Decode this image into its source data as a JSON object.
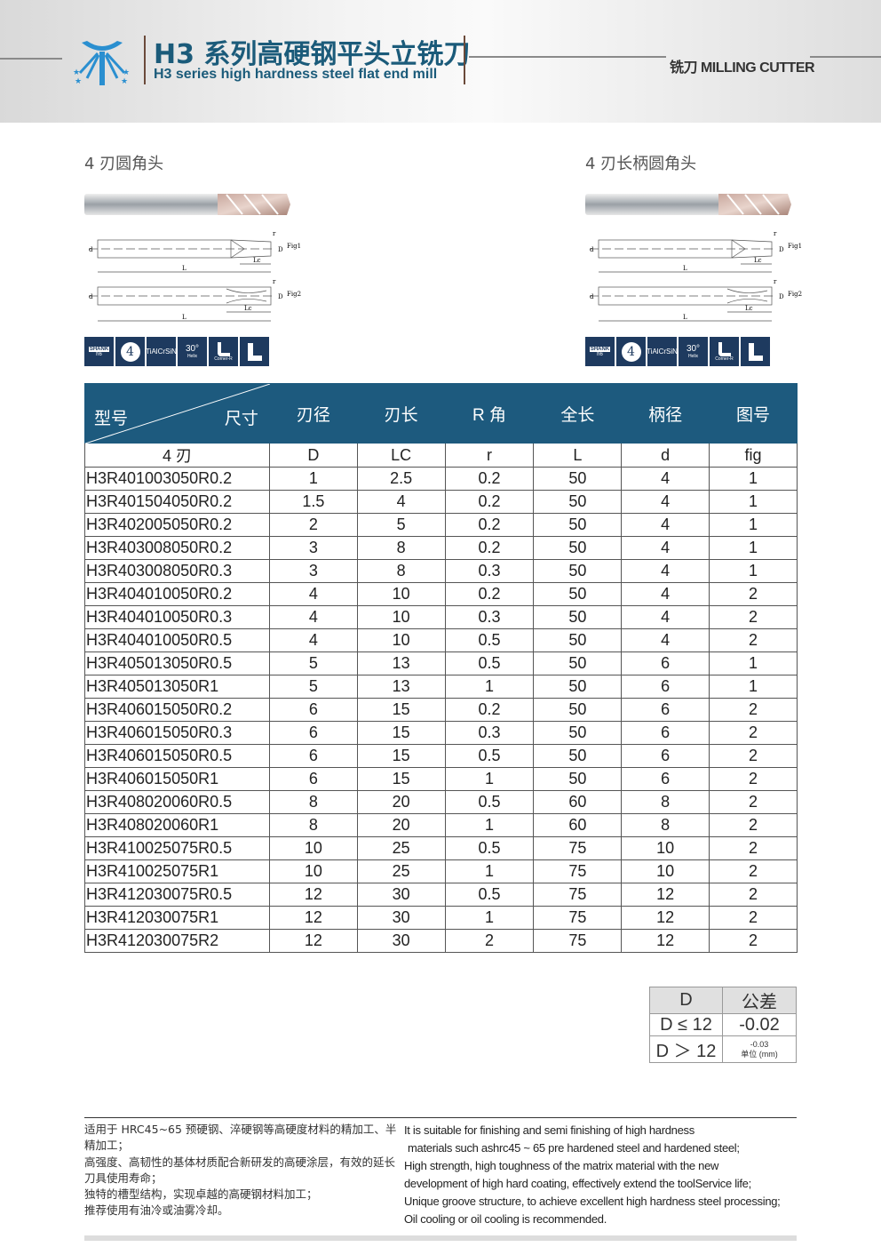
{
  "header": {
    "title_cn": "H3 系列高硬钢平头立铣刀",
    "title_en": "H3 series high hardness steel flat end mill",
    "section": "铣刀 MILLING CUTTER"
  },
  "products": [
    {
      "label": "4 刃圆角头",
      "fig1": "Fig1",
      "fig2": "Fig2"
    },
    {
      "label": "4 刃长柄圆角头",
      "fig1": "Fig1",
      "fig2": "Fig2"
    }
  ],
  "drawing_labels": {
    "d": "d",
    "D": "D",
    "L": "L",
    "Lc": "Lc",
    "r": "r"
  },
  "badges": {
    "shank": "SHANK",
    "shank_tol": "h6",
    "flutes": "4",
    "coating": "TiAlCrSiN",
    "helix_angle": "30°",
    "helix": "Helix",
    "corner": "Corner-R"
  },
  "brand_color": "#1d5a7e",
  "table": {
    "header": {
      "model": "型号",
      "size": "尺寸",
      "cols": [
        "刃径",
        "刃长",
        "R 角",
        "全长",
        "柄径",
        "图号"
      ]
    },
    "subheader": [
      "4 刃",
      "D",
      "LC",
      "r",
      "L",
      "d",
      "fig"
    ],
    "rows": [
      [
        "H3R401003050R0.2",
        "1",
        "2.5",
        "0.2",
        "50",
        "4",
        "1"
      ],
      [
        "H3R401504050R0.2",
        "1.5",
        "4",
        "0.2",
        "50",
        "4",
        "1"
      ],
      [
        "H3R402005050R0.2",
        "2",
        "5",
        "0.2",
        "50",
        "4",
        "1"
      ],
      [
        "H3R403008050R0.2",
        "3",
        "8",
        "0.2",
        "50",
        "4",
        "1"
      ],
      [
        "H3R403008050R0.3",
        "3",
        "8",
        "0.3",
        "50",
        "4",
        "1"
      ],
      [
        "H3R404010050R0.2",
        "4",
        "10",
        "0.2",
        "50",
        "4",
        "2"
      ],
      [
        "H3R404010050R0.3",
        "4",
        "10",
        "0.3",
        "50",
        "4",
        "2"
      ],
      [
        "H3R404010050R0.5",
        "4",
        "10",
        "0.5",
        "50",
        "4",
        "2"
      ],
      [
        "H3R405013050R0.5",
        "5",
        "13",
        "0.5",
        "50",
        "6",
        "1"
      ],
      [
        "H3R405013050R1",
        "5",
        "13",
        "1",
        "50",
        "6",
        "1"
      ],
      [
        "H3R406015050R0.2",
        "6",
        "15",
        "0.2",
        "50",
        "6",
        "2"
      ],
      [
        "H3R406015050R0.3",
        "6",
        "15",
        "0.3",
        "50",
        "6",
        "2"
      ],
      [
        "H3R406015050R0.5",
        "6",
        "15",
        "0.5",
        "50",
        "6",
        "2"
      ],
      [
        "H3R406015050R1",
        "6",
        "15",
        "1",
        "50",
        "6",
        "2"
      ],
      [
        "H3R408020060R0.5",
        "8",
        "20",
        "0.5",
        "60",
        "8",
        "2"
      ],
      [
        "H3R408020060R1",
        "8",
        "20",
        "1",
        "60",
        "8",
        "2"
      ],
      [
        "H3R410025075R0.5",
        "10",
        "25",
        "0.5",
        "75",
        "10",
        "2"
      ],
      [
        "H3R410025075R1",
        "10",
        "25",
        "1",
        "75",
        "10",
        "2"
      ],
      [
        "H3R412030075R0.5",
        "12",
        "30",
        "0.5",
        "75",
        "12",
        "2"
      ],
      [
        "H3R412030075R1",
        "12",
        "30",
        "1",
        "75",
        "12",
        "2"
      ],
      [
        "H3R412030075R2",
        "12",
        "30",
        "2",
        "75",
        "12",
        "2"
      ]
    ]
  },
  "tolerance": {
    "h1": "D",
    "h2": "公差",
    "r1c1": "D ≤ 12",
    "r1c2": "-0.02",
    "r2c1": "D ＞ 12",
    "r2c2": "-0.03",
    "unit": "单位 (mm)"
  },
  "footer": {
    "cn": [
      "适用于 HRC45~65 预硬钢、淬硬钢等高硬度材料的精加工、半精加工；",
      "高强度、高韧性的基体材质配合新研发的高硬涂层，有效的延长刀具使用寿命；",
      "独特的槽型结构，实现卓越的高硬钢材料加工；",
      "推荐使用有油冷或油雾冷却。"
    ],
    "en": [
      "It is suitable for finishing and semi finishing of high hardness",
      "materials such ashrc45 ~ 65 pre hardened steel and hardened steel;",
      "High strength, high toughness of the matrix material with the new",
      "development of high hard coating, effectively extend the toolService life;",
      "Unique groove structure, to achieve excellent high hardness steel processing;",
      "Oil cooling or oil cooling is recommended."
    ]
  }
}
